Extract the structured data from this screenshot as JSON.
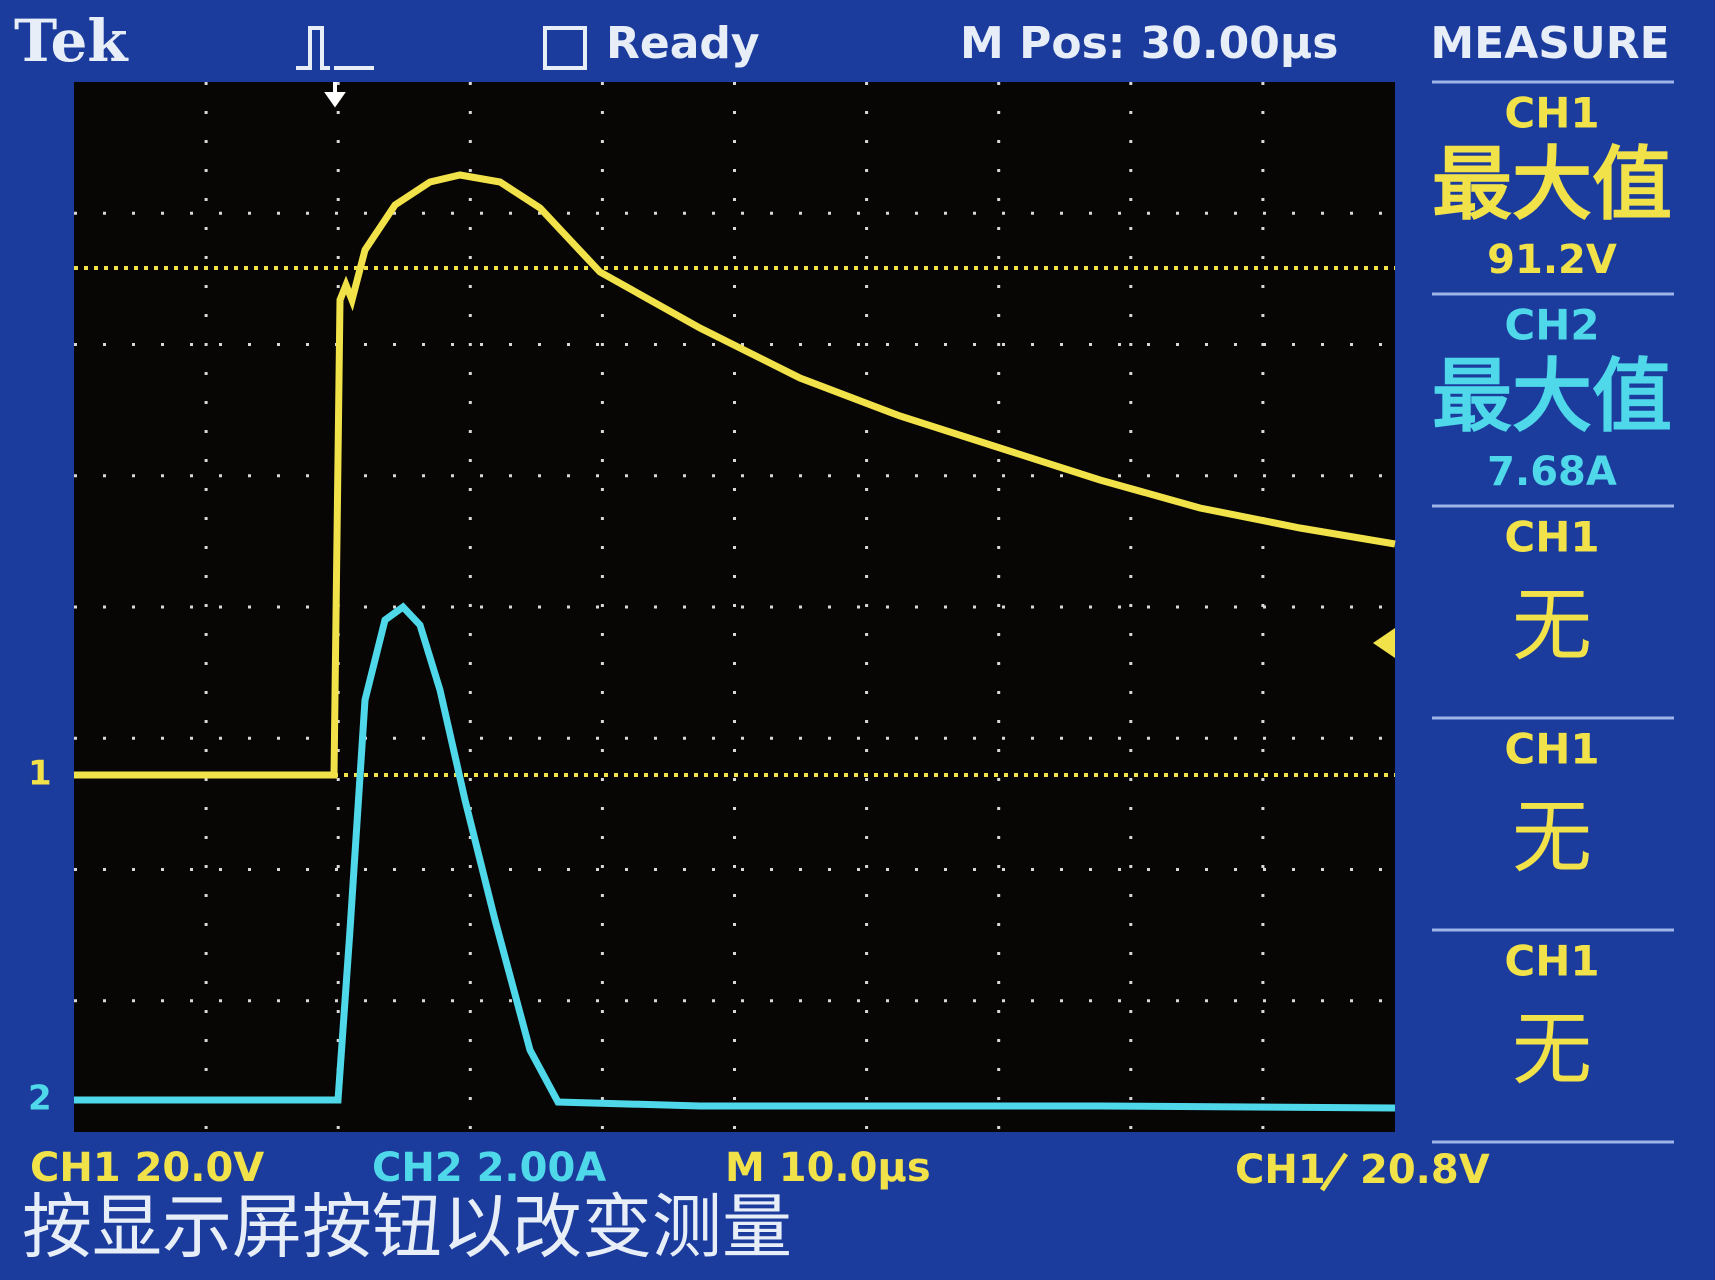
{
  "header": {
    "brand": "Tek",
    "status": "Ready",
    "position": "M Pos: 30.00µs",
    "menu_title": "MEASURE"
  },
  "channel_markers": [
    "1",
    "2"
  ],
  "measurements": [
    {
      "channel": "CH1",
      "label": "最大值",
      "value": "91.2V",
      "color": "#f2e24a"
    },
    {
      "channel": "CH2",
      "label": "最大值",
      "value": "7.68A",
      "color": "#4fd8ea"
    },
    {
      "channel": "CH1",
      "label": "无",
      "color": "#f2e24a"
    },
    {
      "channel": "CH1",
      "label": "无",
      "color": "#f2e24a"
    },
    {
      "channel": "CH1",
      "label": "无",
      "color": "#f2e24a"
    }
  ],
  "footer": {
    "ch1_scale": "CH1  20.0V",
    "ch2_scale": "CH2  2.00A",
    "time_scale": "M 10.0µs",
    "trigger_source": "CH1",
    "trigger_level": "20.8V",
    "message": "按显示屏按钮以改变测量"
  }
}
